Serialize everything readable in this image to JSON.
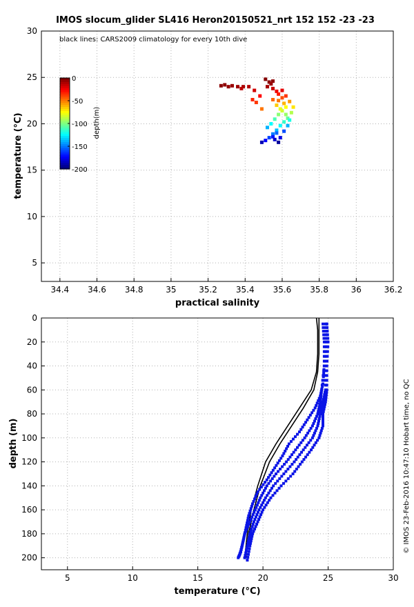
{
  "figure": {
    "title": "IMOS slocum_glider SL416 Heron20150521_nrt 152  152  -23  -23",
    "credit": "© IMOS 23-Feb-2016 10:47:10 Hobart time, no QC",
    "colors": {
      "axis": "#000000",
      "grid": "#b0b0b0",
      "climatology": "#000000",
      "profile": "#0a14e6"
    }
  },
  "chart_data": [
    {
      "type": "scatter",
      "id": "ts",
      "xlabel": "practical salinity",
      "ylabel": "temperature (°C)",
      "xlim": [
        34.3,
        36.2
      ],
      "ylim": [
        3,
        30
      ],
      "xticks": [
        34.4,
        34.6,
        34.8,
        35,
        35.2,
        35.4,
        35.6,
        35.8,
        36,
        36.2
      ],
      "xtick_labels": [
        "34.4",
        "34.6",
        "34.8",
        "35",
        "35.2",
        "35.4",
        "35.6",
        "35.8",
        "36",
        "36.2"
      ],
      "yticks": [
        5,
        10,
        15,
        20,
        25,
        30
      ],
      "ytick_labels": [
        "5",
        "10",
        "15",
        "20",
        "25",
        "30"
      ],
      "grid": true,
      "annotation": "black lines: CARS2009 climatology for every 10th dive",
      "colorbar": {
        "label": "depth(m)",
        "ticks": [
          0,
          -50,
          -100,
          -150,
          -200
        ],
        "tick_labels": [
          "0",
          "-50",
          "-100",
          "-150",
          "-200"
        ],
        "range": [
          -200,
          0
        ],
        "colormap": "jet"
      },
      "series": [
        {
          "name": "glider",
          "color_by": "depth",
          "points": [
            [
              35.27,
              24.1,
              2
            ],
            [
              35.29,
              24.2,
              3
            ],
            [
              35.31,
              24.0,
              4
            ],
            [
              35.33,
              24.1,
              5
            ],
            [
              35.36,
              24.0,
              6
            ],
            [
              35.39,
              24.0,
              8
            ],
            [
              35.42,
              24.0,
              10
            ],
            [
              35.38,
              23.8,
              12
            ],
            [
              35.45,
              23.6,
              16
            ],
            [
              35.48,
              23.0,
              25
            ],
            [
              35.44,
              22.6,
              32
            ],
            [
              35.46,
              22.3,
              36
            ],
            [
              35.49,
              21.6,
              48
            ],
            [
              35.51,
              24.8,
              1
            ],
            [
              35.53,
              24.5,
              2
            ],
            [
              35.55,
              24.6,
              3
            ],
            [
              35.54,
              24.3,
              5
            ],
            [
              35.52,
              24.0,
              8
            ],
            [
              35.55,
              23.8,
              14
            ],
            [
              35.57,
              23.5,
              22
            ],
            [
              35.58,
              23.2,
              30
            ],
            [
              35.6,
              22.8,
              40
            ],
            [
              35.58,
              22.5,
              48
            ],
            [
              35.61,
              22.2,
              60
            ],
            [
              35.62,
              21.8,
              75
            ],
            [
              35.6,
              21.4,
              85
            ],
            [
              35.62,
              21.0,
              95
            ],
            [
              35.63,
              20.6,
              105
            ],
            [
              35.61,
              20.2,
              115
            ],
            [
              35.59,
              19.8,
              125
            ],
            [
              35.57,
              19.3,
              138
            ],
            [
              35.55,
              18.9,
              150
            ],
            [
              35.53,
              18.5,
              162
            ],
            [
              35.51,
              18.2,
              175
            ],
            [
              35.49,
              18.0,
              190
            ],
            [
              35.55,
              22.6,
              45
            ],
            [
              35.57,
              22.0,
              65
            ],
            [
              35.59,
              21.6,
              80
            ],
            [
              35.58,
              21.0,
              98
            ],
            [
              35.56,
              20.5,
              110
            ],
            [
              35.54,
              20.0,
              125
            ],
            [
              35.52,
              19.6,
              140
            ],
            [
              35.57,
              19.0,
              155
            ],
            [
              35.55,
              18.6,
              170
            ],
            [
              35.59,
              18.5,
              180
            ],
            [
              35.61,
              19.2,
              160
            ],
            [
              35.63,
              19.8,
              140
            ],
            [
              35.64,
              20.4,
              120
            ],
            [
              35.65,
              21.2,
              90
            ],
            [
              35.66,
              21.8,
              70
            ],
            [
              35.64,
              22.4,
              55
            ],
            [
              35.62,
              23.0,
              35
            ],
            [
              35.6,
              23.6,
              20
            ],
            [
              35.56,
              18.3,
              185
            ],
            [
              35.58,
              18.0,
              195
            ]
          ]
        }
      ]
    },
    {
      "type": "scatter",
      "id": "profile",
      "xlabel": "temperature (°C)",
      "ylabel": "depth (m)",
      "xlim": [
        3,
        30
      ],
      "ylim": [
        210,
        0
      ],
      "xticks": [
        5,
        10,
        15,
        20,
        25,
        30
      ],
      "xtick_labels": [
        "5",
        "10",
        "15",
        "20",
        "25",
        "30"
      ],
      "yticks": [
        0,
        20,
        40,
        60,
        80,
        100,
        120,
        140,
        160,
        180,
        200
      ],
      "ytick_labels": [
        "0",
        "20",
        "40",
        "60",
        "80",
        "100",
        "120",
        "140",
        "160",
        "180",
        "200"
      ],
      "grid": true,
      "series": [
        {
          "name": "climatology A",
          "style": "line",
          "points": [
            [
              24.1,
              0
            ],
            [
              24.2,
              10
            ],
            [
              24.2,
              30
            ],
            [
              24.1,
              45
            ],
            [
              23.7,
              60
            ],
            [
              22.8,
              75
            ],
            [
              21.9,
              90
            ],
            [
              21.0,
              105
            ],
            [
              20.2,
              120
            ],
            [
              19.6,
              140
            ],
            [
              19.1,
              160
            ],
            [
              18.8,
              180
            ],
            [
              18.6,
              200
            ]
          ]
        },
        {
          "name": "climatology B",
          "style": "line",
          "points": [
            [
              24.3,
              0
            ],
            [
              24.3,
              10
            ],
            [
              24.3,
              30
            ],
            [
              24.2,
              45
            ],
            [
              23.9,
              60
            ],
            [
              23.1,
              75
            ],
            [
              22.2,
              90
            ],
            [
              21.3,
              105
            ],
            [
              20.5,
              120
            ],
            [
              19.8,
              140
            ],
            [
              19.3,
              160
            ],
            [
              18.9,
              180
            ],
            [
              18.7,
              200
            ]
          ]
        },
        {
          "name": "glider profile 1",
          "style": "markers",
          "points": [
            [
              24.6,
              5
            ],
            [
              24.7,
              20
            ],
            [
              24.7,
              40
            ],
            [
              24.6,
              55
            ],
            [
              24.4,
              65
            ],
            [
              24.0,
              75
            ],
            [
              23.4,
              85
            ],
            [
              22.8,
              95
            ],
            [
              22.0,
              105
            ],
            [
              21.5,
              115
            ],
            [
              20.9,
              125
            ],
            [
              20.3,
              135
            ],
            [
              19.6,
              145
            ],
            [
              19.2,
              155
            ],
            [
              18.9,
              165
            ],
            [
              18.7,
              175
            ],
            [
              18.5,
              185
            ],
            [
              18.3,
              195
            ],
            [
              18.1,
              200
            ]
          ]
        },
        {
          "name": "glider profile 2",
          "style": "markers",
          "points": [
            [
              24.8,
              5
            ],
            [
              24.8,
              20
            ],
            [
              24.7,
              40
            ],
            [
              24.5,
              60
            ],
            [
              24.4,
              70
            ],
            [
              24.2,
              80
            ],
            [
              23.8,
              90
            ],
            [
              23.2,
              100
            ],
            [
              22.5,
              110
            ],
            [
              21.8,
              120
            ],
            [
              21.0,
              130
            ],
            [
              20.3,
              140
            ],
            [
              19.8,
              150
            ],
            [
              19.4,
              160
            ],
            [
              19.0,
              170
            ],
            [
              18.6,
              180
            ],
            [
              18.4,
              190
            ],
            [
              18.2,
              198
            ]
          ]
        },
        {
          "name": "glider profile 3",
          "style": "markers",
          "points": [
            [
              24.9,
              5
            ],
            [
              24.9,
              20
            ],
            [
              24.8,
              40
            ],
            [
              24.8,
              60
            ],
            [
              24.6,
              70
            ],
            [
              24.4,
              80
            ],
            [
              24.2,
              90
            ],
            [
              23.8,
              100
            ],
            [
              23.1,
              110
            ],
            [
              22.4,
              120
            ],
            [
              21.6,
              130
            ],
            [
              20.8,
              140
            ],
            [
              20.2,
              150
            ],
            [
              19.7,
              160
            ],
            [
              19.3,
              170
            ],
            [
              19.0,
              180
            ],
            [
              18.8,
              190
            ],
            [
              18.6,
              200
            ]
          ]
        },
        {
          "name": "glider profile 4",
          "style": "markers",
          "points": [
            [
              24.9,
              5
            ],
            [
              25.0,
              20
            ],
            [
              24.9,
              40
            ],
            [
              24.9,
              60
            ],
            [
              24.8,
              70
            ],
            [
              24.6,
              80
            ],
            [
              24.6,
              90
            ],
            [
              24.3,
              100
            ],
            [
              23.7,
              110
            ],
            [
              23.0,
              120
            ],
            [
              22.3,
              130
            ],
            [
              21.4,
              140
            ],
            [
              20.6,
              150
            ],
            [
              20.0,
              160
            ],
            [
              19.6,
              170
            ],
            [
              19.2,
              180
            ],
            [
              19.0,
              190
            ],
            [
              18.8,
              202
            ]
          ]
        }
      ]
    }
  ]
}
